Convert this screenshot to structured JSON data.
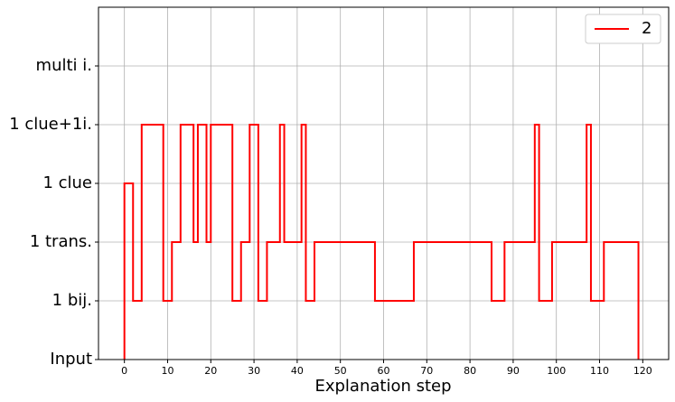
{
  "chart_data": {
    "type": "step",
    "x_label": "Explanation step",
    "x": [
      0,
      0,
      2,
      4,
      9,
      11,
      13,
      16,
      17,
      19,
      20,
      25,
      27,
      29,
      31,
      33,
      36,
      37,
      41,
      42,
      44,
      58,
      67,
      85,
      88,
      95,
      96,
      99,
      107,
      108,
      111,
      119
    ],
    "series": [
      {
        "name": "2",
        "color": "#ff0000",
        "values": [
          0,
          3,
          1,
          4,
          1,
          2,
          4,
          2,
          4,
          2,
          4,
          1,
          2,
          4,
          1,
          2,
          4,
          2,
          4,
          1,
          2,
          1,
          2,
          1,
          2,
          4,
          1,
          2,
          4,
          1,
          2,
          0
        ]
      }
    ],
    "xlim": [
      -6,
      126
    ],
    "xticks": [
      0,
      10,
      20,
      30,
      40,
      50,
      60,
      70,
      80,
      90,
      100,
      110,
      120
    ],
    "ylim": [
      0,
      6
    ],
    "yticks": [
      {
        "value": 0,
        "label": "Input"
      },
      {
        "value": 1,
        "label": "1 bij."
      },
      {
        "value": 2,
        "label": "1 trans."
      },
      {
        "value": 3,
        "label": "1 clue"
      },
      {
        "value": 4,
        "label": "1 clue+1i."
      },
      {
        "value": 5,
        "label": "multi i."
      }
    ],
    "grid": true,
    "legend": "upper right"
  }
}
